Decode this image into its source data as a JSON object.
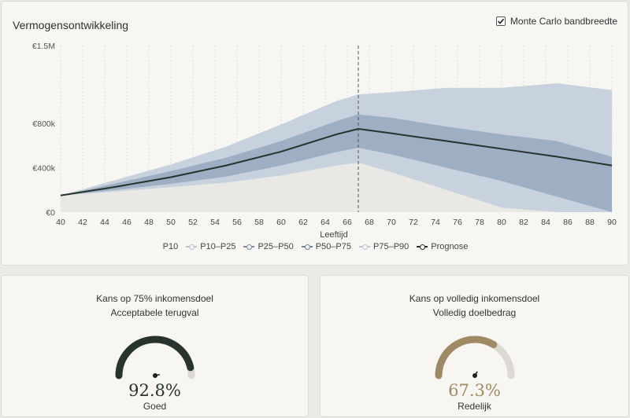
{
  "chart_panel": {
    "title": "Vermogensontwikkeling",
    "toggle_label": "Monte Carlo bandbreedte",
    "toggle_checked": true
  },
  "chart_data": {
    "type": "area",
    "title": "Vermogensontwikkeling",
    "xlabel": "Leeftijd",
    "ylabel": "",
    "xlim": [
      40,
      90
    ],
    "ylim": [
      0,
      1500000
    ],
    "x_ticks": [
      40,
      42,
      44,
      46,
      48,
      50,
      52,
      54,
      56,
      58,
      60,
      62,
      64,
      66,
      68,
      70,
      72,
      74,
      76,
      78,
      80,
      82,
      84,
      86,
      88,
      90
    ],
    "y_ticks": [
      0,
      400000,
      800000,
      1500000
    ],
    "y_tick_labels": [
      "€0",
      "€400k",
      "€800k",
      "€1.5M"
    ],
    "retirement_age": 67,
    "grid": "vertical dotted",
    "x": [
      40,
      45,
      50,
      55,
      60,
      65,
      67,
      70,
      75,
      80,
      85,
      90
    ],
    "series": [
      {
        "name": "P10",
        "values": [
          150000,
          185000,
          225000,
          265000,
          330000,
          420000,
          445000,
          360000,
          200000,
          40000,
          0,
          0
        ]
      },
      {
        "name": "P25",
        "values": [
          150000,
          200000,
          255000,
          320000,
          420000,
          540000,
          580000,
          520000,
          400000,
          280000,
          140000,
          0
        ]
      },
      {
        "name": "P50",
        "values": [
          150000,
          228000,
          310000,
          405000,
          520000,
          660000,
          705000,
          650000,
          560000,
          480000,
          400000,
          320000
        ]
      },
      {
        "name": "P75",
        "values": [
          150000,
          260000,
          370000,
          490000,
          640000,
          820000,
          880000,
          850000,
          770000,
          700000,
          640000,
          500000
        ]
      },
      {
        "name": "P90",
        "values": [
          150000,
          290000,
          430000,
          590000,
          790000,
          1000000,
          1060000,
          1080000,
          1120000,
          1120000,
          1160000,
          1100000
        ]
      },
      {
        "name": "Prognose",
        "values": [
          150000,
          228000,
          315000,
          420000,
          545000,
          700000,
          750000,
          710000,
          640000,
          570000,
          500000,
          420000
        ]
      }
    ]
  },
  "legend": {
    "items": [
      {
        "label": "P10",
        "color": ""
      },
      {
        "label": "P10–P25",
        "color": "#b8c4d1"
      },
      {
        "label": "P25–P50",
        "color": "#7a8ea6"
      },
      {
        "label": "P50–P75",
        "color": "#6f839c"
      },
      {
        "label": "P75–P90",
        "color": "#b8c4d1"
      },
      {
        "label": "Prognose",
        "color": "#243029"
      }
    ]
  },
  "gauges": [
    {
      "title": "Kans op 75% inkomensdoel",
      "subtitle": "Acceptabele terugval",
      "value": 0.928,
      "display": "92.8%",
      "status": "Goed",
      "color": "#27332c"
    },
    {
      "title": "Kans op volledig inkomensdoel",
      "subtitle": "Volledig doelbedrag",
      "value": 0.673,
      "display": "67.3%",
      "status": "Redelijk",
      "color": "#a08a63"
    }
  ],
  "colors": {
    "band_outer": "#c7d2de",
    "band_inner": "#9eafc3",
    "below_p10": "#e9e8e5",
    "median": "#27332c",
    "gauge_track": "#dcd9d2"
  }
}
